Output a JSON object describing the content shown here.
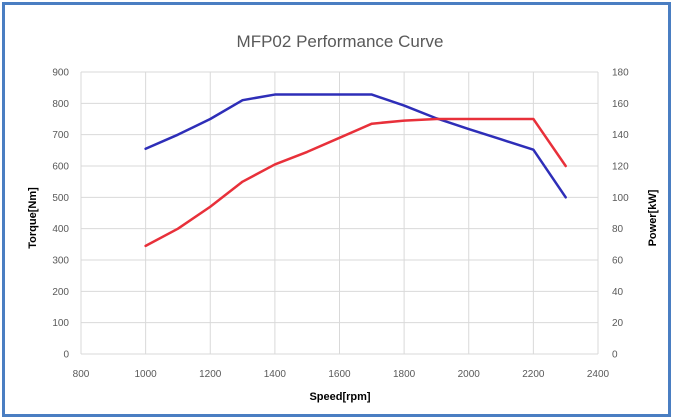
{
  "chart_data": {
    "type": "line",
    "title": "MFP02 Performance Curve",
    "xlabel": "Speed[rpm]",
    "ylabel": "Torque[Nm]",
    "y2label": "Power[kW]",
    "xlim": [
      800,
      2400
    ],
    "ylim": [
      0,
      900
    ],
    "y2lim": [
      0,
      180
    ],
    "x_ticks": [
      "800",
      "1000",
      "1200",
      "1400",
      "1600",
      "1800",
      "2000",
      "2200",
      "2400"
    ],
    "y_ticks": [
      "0",
      "100",
      "200",
      "300",
      "400",
      "500",
      "600",
      "700",
      "800",
      "900"
    ],
    "y2_ticks": [
      "0",
      "20",
      "40",
      "60",
      "80",
      "100",
      "120",
      "140",
      "160",
      "180"
    ],
    "grid": true,
    "legend": "none",
    "series": [
      {
        "axis": "left",
        "color": "#2e2eb8",
        "x": [
          1000,
          1100,
          1200,
          1300,
          1400,
          1500,
          1600,
          1700,
          1800,
          1900,
          2000,
          2100,
          2200,
          2300
        ],
        "values": [
          655,
          700,
          750,
          810,
          828,
          828,
          828,
          828,
          793,
          752,
          718,
          685,
          652,
          500
        ]
      },
      {
        "axis": "right",
        "color": "#e8303a",
        "x": [
          1000,
          1100,
          1200,
          1300,
          1400,
          1500,
          1600,
          1700,
          1800,
          1900,
          2000,
          2100,
          2200,
          2300
        ],
        "values": [
          69,
          80,
          94,
          110,
          121,
          129,
          138,
          147,
          149,
          150,
          150,
          150,
          150,
          120
        ]
      }
    ]
  }
}
